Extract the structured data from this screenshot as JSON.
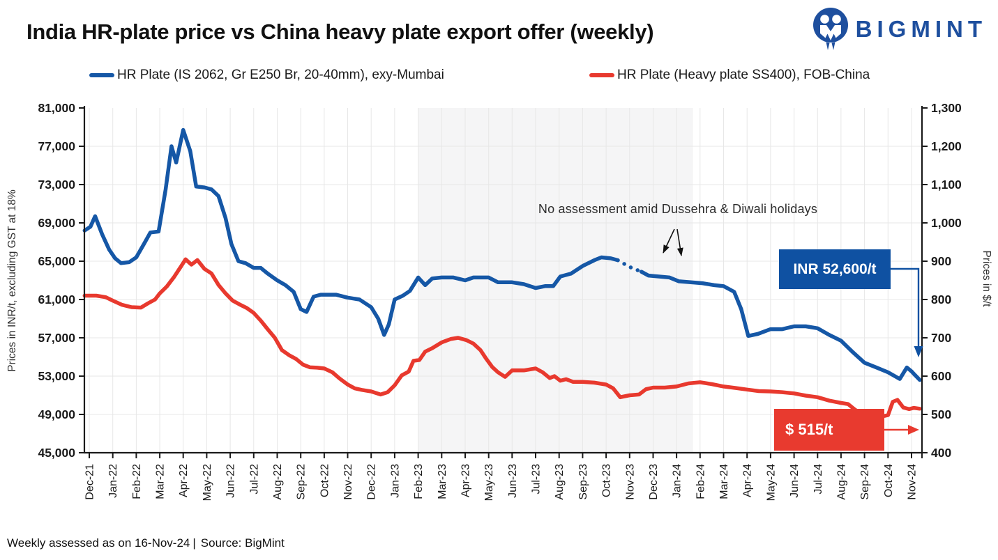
{
  "header": {
    "title": "India HR-plate price vs China heavy plate export offer (weekly)"
  },
  "logo": {
    "text": "BIGMINT",
    "color": "#1e4f9e"
  },
  "legend": [
    {
      "label": "HR Plate (IS 2062, Gr E250 Br, 20-40mm), exy-Mumbai",
      "color": "#1557a6"
    },
    {
      "label": "HR Plate (Heavy plate SS400), FOB-China",
      "color": "#e8392e"
    }
  ],
  "annotation": {
    "text": "No assessment amid Dussehra & Diwali holidays"
  },
  "callouts": {
    "india": {
      "label": "INR 52,600/t",
      "color": "#0f51a2"
    },
    "china": {
      "label": "$ 515/t",
      "color": "#e83a2f"
    }
  },
  "footer": {
    "text1": "Weekly assessed as on 16-Nov-24",
    "sep": "|",
    "text2": "Source: BigMint"
  },
  "chart_data": {
    "type": "line",
    "title": "India HR-plate price vs China heavy plate export offer (weekly)",
    "grid": true,
    "legend_position": "top",
    "x_tick_labels": [
      "Dec-21",
      "Jan-22",
      "Feb-22",
      "Mar-22",
      "Apr-22",
      "May-22",
      "Jun-22",
      "Jul-22",
      "Aug-22",
      "Sep-22",
      "Oct-22",
      "Nov-22",
      "Dec-22",
      "Jan-23",
      "Feb-23",
      "Mar-23",
      "Apr-23",
      "May-23",
      "Jun-23",
      "Jul-23",
      "Aug-23",
      "Sep-23",
      "Oct-23",
      "Nov-23",
      "Dec-23",
      "Jan-24",
      "Feb-24",
      "Mar-24",
      "Apr-24",
      "May-24",
      "Jun-24",
      "Jul-24",
      "Aug-24",
      "Sep-24",
      "Oct-24",
      "Nov-24"
    ],
    "left_axis": {
      "label": "Prices in INR/t, excluding GST at 18%",
      "min": 45000,
      "max": 81000,
      "step": 4000,
      "tick_labels": [
        "45,000",
        "49,000",
        "53,000",
        "57,000",
        "61,000",
        "65,000",
        "69,000",
        "73,000",
        "77,000",
        "81,000"
      ]
    },
    "right_axis": {
      "label": "Prices in $/t",
      "min": 400,
      "max": 1300,
      "step": 100,
      "tick_labels": [
        "400",
        "500",
        "600",
        "700",
        "800",
        "900",
        "1,000",
        "1,100",
        "1,200",
        "1,300"
      ]
    },
    "highlight_band": {
      "from_month": 14,
      "to_month": 25.7
    },
    "series": [
      {
        "name": "HR Plate (IS 2062, Gr E250 Br, 20-40mm), exy-Mumbai",
        "axis": "left",
        "color": "#1557a6",
        "unit": "INR/t",
        "last_value_label": "INR 52,600/t",
        "dotted_segment": [
          65,
          67
        ],
        "points": [
          [
            -0.2,
            68200
          ],
          [
            0.05,
            68600
          ],
          [
            0.25,
            69700
          ],
          [
            0.55,
            67800
          ],
          [
            0.85,
            66200
          ],
          [
            1.1,
            65300
          ],
          [
            1.35,
            64800
          ],
          [
            1.7,
            64900
          ],
          [
            2.0,
            65400
          ],
          [
            2.35,
            66900
          ],
          [
            2.6,
            68000
          ],
          [
            2.95,
            68100
          ],
          [
            3.25,
            72500
          ],
          [
            3.5,
            77000
          ],
          [
            3.7,
            75300
          ],
          [
            4.0,
            78700
          ],
          [
            4.3,
            76500
          ],
          [
            4.55,
            72800
          ],
          [
            4.9,
            72700
          ],
          [
            5.2,
            72500
          ],
          [
            5.5,
            71800
          ],
          [
            5.8,
            69500
          ],
          [
            6.05,
            66800
          ],
          [
            6.35,
            65000
          ],
          [
            6.65,
            64800
          ],
          [
            7.0,
            64300
          ],
          [
            7.3,
            64300
          ],
          [
            7.6,
            63700
          ],
          [
            8.0,
            63000
          ],
          [
            8.35,
            62500
          ],
          [
            8.7,
            61800
          ],
          [
            9.0,
            60000
          ],
          [
            9.25,
            59700
          ],
          [
            9.55,
            61300
          ],
          [
            9.85,
            61500
          ],
          [
            10.5,
            61500
          ],
          [
            11.0,
            61200
          ],
          [
            11.5,
            61000
          ],
          [
            12.0,
            60200
          ],
          [
            12.3,
            59000
          ],
          [
            12.55,
            57300
          ],
          [
            12.75,
            58400
          ],
          [
            13.0,
            61000
          ],
          [
            13.35,
            61400
          ],
          [
            13.65,
            61900
          ],
          [
            14.0,
            63300
          ],
          [
            14.3,
            62500
          ],
          [
            14.6,
            63200
          ],
          [
            15.0,
            63300
          ],
          [
            15.5,
            63300
          ],
          [
            16.0,
            63000
          ],
          [
            16.35,
            63300
          ],
          [
            17.0,
            63300
          ],
          [
            17.4,
            62800
          ],
          [
            18.0,
            62800
          ],
          [
            18.5,
            62600
          ],
          [
            19.0,
            62200
          ],
          [
            19.4,
            62400
          ],
          [
            19.75,
            62400
          ],
          [
            20.05,
            63400
          ],
          [
            20.5,
            63700
          ],
          [
            21.0,
            64500
          ],
          [
            21.5,
            65100
          ],
          [
            21.8,
            65400
          ],
          [
            22.2,
            65300
          ],
          [
            22.5,
            65100
          ],
          [
            23.0,
            64400
          ],
          [
            23.5,
            63900
          ],
          [
            23.8,
            63500
          ],
          [
            24.25,
            63400
          ],
          [
            24.7,
            63300
          ],
          [
            25.1,
            62900
          ],
          [
            25.6,
            62800
          ],
          [
            26.1,
            62700
          ],
          [
            26.6,
            62500
          ],
          [
            27.0,
            62400
          ],
          [
            27.45,
            61800
          ],
          [
            27.75,
            60000
          ],
          [
            28.05,
            57200
          ],
          [
            28.45,
            57400
          ],
          [
            29.0,
            57900
          ],
          [
            29.5,
            57900
          ],
          [
            30.0,
            58200
          ],
          [
            30.5,
            58200
          ],
          [
            31.0,
            58000
          ],
          [
            31.5,
            57300
          ],
          [
            32.0,
            56700
          ],
          [
            32.5,
            55500
          ],
          [
            33.0,
            54400
          ],
          [
            33.5,
            53900
          ],
          [
            34.0,
            53400
          ],
          [
            34.5,
            52700
          ],
          [
            34.8,
            53900
          ],
          [
            35.0,
            53500
          ],
          [
            35.15,
            53100
          ],
          [
            35.35,
            52600
          ]
        ]
      },
      {
        "name": "HR Plate (Heavy plate SS400), FOB-China",
        "axis": "right",
        "color": "#e8392e",
        "unit": "$/t",
        "last_value_label": "$ 515/t",
        "points": [
          [
            -0.2,
            810
          ],
          [
            0.3,
            810
          ],
          [
            0.7,
            806
          ],
          [
            1.0,
            797
          ],
          [
            1.4,
            786
          ],
          [
            1.8,
            780
          ],
          [
            2.2,
            779
          ],
          [
            2.5,
            790
          ],
          [
            2.8,
            800
          ],
          [
            3.0,
            816
          ],
          [
            3.3,
            834
          ],
          [
            3.6,
            858
          ],
          [
            3.9,
            886
          ],
          [
            4.1,
            905
          ],
          [
            4.35,
            891
          ],
          [
            4.6,
            903
          ],
          [
            4.9,
            880
          ],
          [
            5.2,
            868
          ],
          [
            5.5,
            838
          ],
          [
            5.8,
            816
          ],
          [
            6.1,
            797
          ],
          [
            6.4,
            787
          ],
          [
            6.7,
            778
          ],
          [
            7.0,
            765
          ],
          [
            7.3,
            745
          ],
          [
            7.6,
            722
          ],
          [
            7.9,
            700
          ],
          [
            8.2,
            668
          ],
          [
            8.5,
            655
          ],
          [
            8.8,
            645
          ],
          [
            9.1,
            630
          ],
          [
            9.4,
            623
          ],
          [
            9.7,
            622
          ],
          [
            10.0,
            620
          ],
          [
            10.35,
            610
          ],
          [
            10.65,
            594
          ],
          [
            11.0,
            578
          ],
          [
            11.3,
            568
          ],
          [
            11.6,
            564
          ],
          [
            12.0,
            560
          ],
          [
            12.4,
            552
          ],
          [
            12.7,
            558
          ],
          [
            13.0,
            576
          ],
          [
            13.3,
            602
          ],
          [
            13.6,
            612
          ],
          [
            13.8,
            640
          ],
          [
            14.05,
            642
          ],
          [
            14.3,
            664
          ],
          [
            14.6,
            673
          ],
          [
            15.0,
            688
          ],
          [
            15.4,
            697
          ],
          [
            15.7,
            700
          ],
          [
            16.05,
            694
          ],
          [
            16.35,
            685
          ],
          [
            16.65,
            668
          ],
          [
            16.9,
            645
          ],
          [
            17.15,
            624
          ],
          [
            17.4,
            610
          ],
          [
            17.7,
            598
          ],
          [
            18.0,
            615
          ],
          [
            18.5,
            615
          ],
          [
            19.0,
            620
          ],
          [
            19.3,
            610
          ],
          [
            19.6,
            595
          ],
          [
            19.8,
            600
          ],
          [
            20.05,
            588
          ],
          [
            20.3,
            592
          ],
          [
            20.6,
            585
          ],
          [
            21.0,
            585
          ],
          [
            21.5,
            583
          ],
          [
            22.0,
            578
          ],
          [
            22.3,
            568
          ],
          [
            22.6,
            545
          ],
          [
            23.0,
            550
          ],
          [
            23.4,
            552
          ],
          [
            23.7,
            566
          ],
          [
            24.0,
            570
          ],
          [
            24.5,
            570
          ],
          [
            25.0,
            573
          ],
          [
            25.5,
            581
          ],
          [
            26.0,
            584
          ],
          [
            26.5,
            579
          ],
          [
            27.0,
            573
          ],
          [
            27.5,
            569
          ],
          [
            28.0,
            565
          ],
          [
            28.5,
            561
          ],
          [
            29.0,
            560
          ],
          [
            29.5,
            558
          ],
          [
            30.0,
            555
          ],
          [
            30.5,
            549
          ],
          [
            31.0,
            545
          ],
          [
            31.5,
            536
          ],
          [
            32.0,
            530
          ],
          [
            32.3,
            527
          ],
          [
            32.6,
            512
          ],
          [
            33.0,
            498
          ],
          [
            33.5,
            492
          ],
          [
            34.0,
            498
          ],
          [
            34.2,
            533
          ],
          [
            34.4,
            538
          ],
          [
            34.65,
            518
          ],
          [
            34.9,
            514
          ],
          [
            35.1,
            517
          ],
          [
            35.35,
            515
          ]
        ]
      }
    ],
    "annotation": "No assessment amid Dussehra & Diwali holidays"
  }
}
